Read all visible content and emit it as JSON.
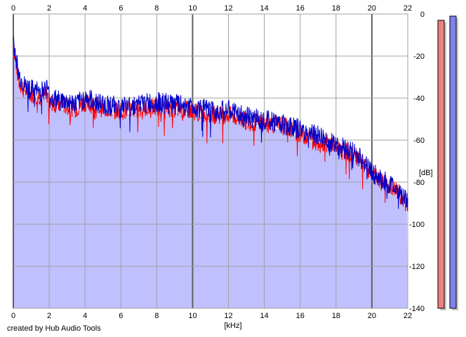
{
  "chart_data": {
    "type": "area",
    "xlabel": "[kHz]",
    "ylabel": "[dB]",
    "xlim": [
      0,
      22
    ],
    "ylim": [
      -140,
      0
    ],
    "x_ticks": [
      0,
      2,
      4,
      6,
      8,
      10,
      12,
      14,
      16,
      18,
      20,
      22
    ],
    "y_ticks": [
      0,
      -20,
      -40,
      -60,
      -80,
      -100,
      -120,
      -140
    ],
    "grid": true,
    "colors": {
      "fill": "#c0c0ff",
      "left_channel": "#ff0000",
      "right_channel": "#0000cc",
      "meter_left": "#f08080",
      "meter_right": "#8080f0"
    },
    "series": [
      {
        "x": [
          0,
          0.1,
          0.3,
          0.6,
          1.0,
          1.5,
          1.9,
          2.0,
          2.5,
          3.0,
          3.5,
          4.0,
          5.0,
          6.0,
          7.0,
          8.0,
          9.0,
          10.0,
          11.0,
          12.0,
          13.0,
          14.0,
          15.0,
          16.0,
          17.0,
          18.0,
          19.0,
          19.5,
          20.0,
          20.5,
          21.0,
          21.5,
          22.0
        ],
        "y": [
          -14,
          -20,
          -32,
          -36,
          -38,
          -39,
          -38,
          -42,
          -43,
          -44,
          -45,
          -42,
          -45,
          -46,
          -45,
          -44,
          -45,
          -46,
          -48,
          -48,
          -51,
          -52,
          -53,
          -57,
          -60,
          -63,
          -67,
          -72,
          -76,
          -80,
          -82,
          -85,
          -92
        ]
      },
      {
        "x": [
          0,
          0.1,
          0.3,
          0.6,
          1.0,
          1.5,
          1.9,
          2.0,
          2.5,
          3.0,
          3.5,
          4.0,
          5.0,
          6.0,
          7.0,
          8.0,
          9.0,
          10.0,
          11.0,
          12.0,
          13.0,
          14.0,
          15.0,
          16.0,
          17.0,
          18.0,
          19.0,
          19.5,
          20.0,
          20.5,
          21.0,
          21.5,
          22.0
        ],
        "y": [
          -12,
          -18,
          -29,
          -34,
          -36,
          -37,
          -35,
          -40,
          -41,
          -42,
          -43,
          -40,
          -43,
          -44,
          -43,
          -42,
          -43,
          -44,
          -46,
          -46,
          -49,
          -50,
          -52,
          -55,
          -58,
          -62,
          -66,
          -70,
          -75,
          -79,
          -81,
          -84,
          -90
        ]
      }
    ],
    "meters": {
      "left_top": -3,
      "right_top": -1
    }
  },
  "credit": "created by Hub Audio Tools"
}
